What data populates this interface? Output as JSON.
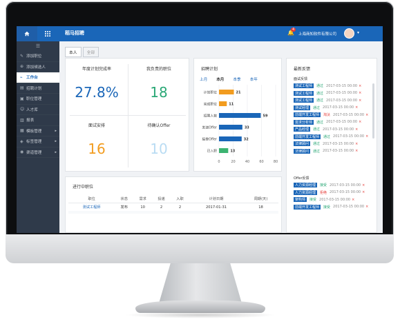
{
  "app": {
    "title": "稻马招聘",
    "company": "上海商知软件有限公司",
    "notifications": "4"
  },
  "sidebar": {
    "items": [
      {
        "label": "添加职位",
        "icon": "edit-icon"
      },
      {
        "label": "添加候选人",
        "icon": "user-plus-icon"
      },
      {
        "label": "工作台",
        "icon": "link-icon",
        "active": true
      },
      {
        "label": "招聘计划",
        "icon": "calendar-icon"
      },
      {
        "label": "职位管理",
        "icon": "briefcase-icon"
      },
      {
        "label": "人才库",
        "icon": "people-icon"
      },
      {
        "label": "报表",
        "icon": "chart-icon"
      },
      {
        "label": "模板管理",
        "icon": "template-icon",
        "expandable": true
      },
      {
        "label": "标签管理",
        "icon": "tag-icon",
        "expandable": true
      },
      {
        "label": "渠道管理",
        "icon": "channel-icon",
        "expandable": true
      }
    ]
  },
  "tabs": [
    {
      "label": "本人",
      "active": true
    },
    {
      "label": "全部",
      "active": false
    }
  ],
  "kpis": [
    {
      "label": "年度计划完成率",
      "value": "27.8%",
      "color": "#1a66b8"
    },
    {
      "label": "我负责的职位",
      "value": "18",
      "color": "#2aa876"
    },
    {
      "label": "面试安排",
      "value": "16",
      "color": "#f29c1f"
    },
    {
      "label": "待确认Offer",
      "value": "10",
      "color": "#b9dcf3"
    }
  ],
  "plan": {
    "title": "招聘计划",
    "periods": [
      "上月",
      "本月",
      "本季",
      "本年"
    ],
    "active_period": "本月"
  },
  "chart_data": {
    "type": "bar",
    "orientation": "horizontal",
    "categories": [
      "计划职位",
      "完成职位",
      "招聘人数",
      "发送Offer",
      "接受Offer",
      "已入职"
    ],
    "values": [
      21,
      11,
      59,
      33,
      32,
      13
    ],
    "colors": [
      "#f29c1f",
      "#f29c1f",
      "#1a66b8",
      "#1a66b8",
      "#1a66b8",
      "#3cb371"
    ],
    "xticks": [
      0,
      20,
      40,
      60,
      80
    ],
    "xlim": [
      0,
      80
    ]
  },
  "feed": {
    "title": "最新反馈",
    "interview_title": "面试反馈",
    "interview": [
      {
        "tag": "测试工程师",
        "status": "通过",
        "status_color": "#2aa876",
        "date": "2017-03-15 00:00"
      },
      {
        "tag": "测试工程师",
        "status": "通过",
        "status_color": "#2aa876",
        "date": "2017-03-15 00:00"
      },
      {
        "tag": "测试工程师",
        "status": "通过",
        "status_color": "#2aa876",
        "date": "2017-03-15 00:00"
      },
      {
        "tag": "测试经理",
        "status": "通过",
        "status_color": "#2aa876",
        "date": "2017-03-15 00:00"
      },
      {
        "tag": "前端开发工程师",
        "status": "淘汰",
        "status_color": "#e53935",
        "date": "2017-03-15 00:00"
      },
      {
        "tag": "需求分析师",
        "status": "通过",
        "status_color": "#2aa876",
        "date": "2017-03-15 00:00"
      },
      {
        "tag": "产品经理",
        "status": "通过",
        "status_color": "#2aa876",
        "date": "2017-03-15 00:00"
      },
      {
        "tag": "前端开发工程师",
        "status": "通过",
        "status_color": "#2aa876",
        "date": "2017-03-15 00:00"
      },
      {
        "tag": "法律顾问",
        "status": "通过",
        "status_color": "#2aa876",
        "date": "2017-03-15 00:00"
      },
      {
        "tag": "法律顾问",
        "status": "通过",
        "status_color": "#2aa876",
        "date": "2017-03-15 00:00"
      }
    ],
    "offer_title": "Offer反馈",
    "offer": [
      {
        "tag": "人力资源经理",
        "status": "接受",
        "status_color": "#2aa876",
        "date": "2017-03-15 00:00"
      },
      {
        "tag": "人力资源经理",
        "status": "拒绝",
        "status_color": "#e53935",
        "date": "2017-03-15 00:00"
      },
      {
        "tag": "架构师",
        "status": "接受",
        "status_color": "#2aa876",
        "date": "2017-03-15 00:00"
      },
      {
        "tag": "前端开发工程师",
        "status": "接受",
        "status_color": "#2aa876",
        "date": "2017-03-15 00:00"
      }
    ]
  },
  "jobs": {
    "title": "进行中职位",
    "columns": [
      "职位",
      "状态",
      "需求",
      "投递",
      "入职",
      "计划日期",
      "周期(天)"
    ],
    "rows": [
      [
        "测试工程师",
        "发布",
        "10",
        "2",
        "2",
        "2017-01-31",
        "18"
      ],
      [
        "",
        "",
        "",
        "",
        "",
        "",
        ""
      ]
    ]
  }
}
